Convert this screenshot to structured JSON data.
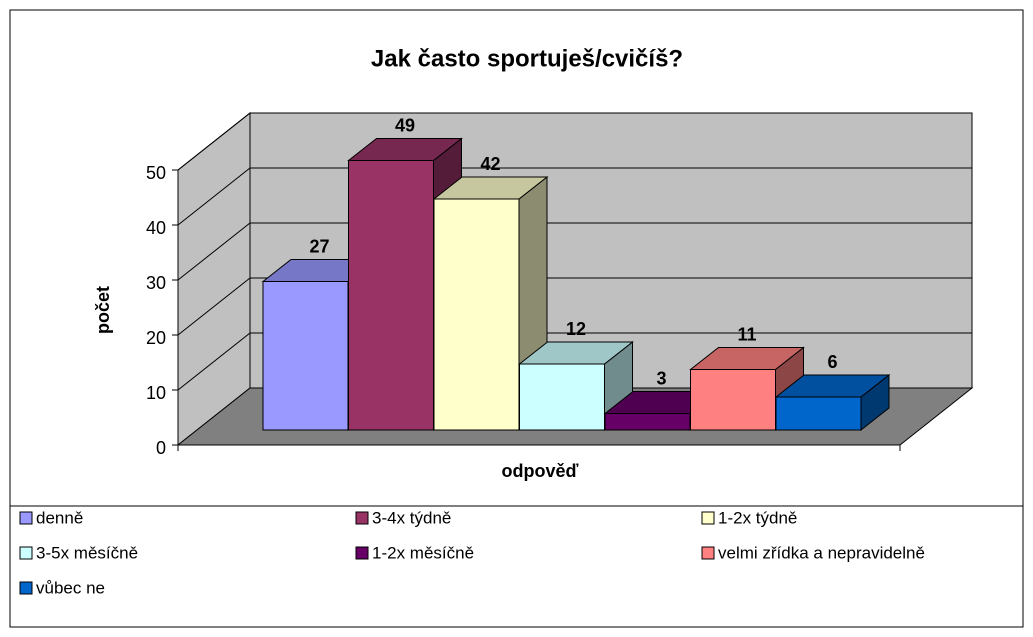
{
  "chart_data": {
    "type": "bar3d",
    "title": "Jak často sportuješ/cvičíš?",
    "ylabel": "počet",
    "xlabel": "odpověď",
    "categories": [
      "denně",
      "3-4x týdně",
      "1-2x týdně",
      "3-5x měsíčně",
      "1-2x měsíčně",
      "velmi zřídka a nepravidelně",
      "vůbec ne"
    ],
    "values": [
      27,
      49,
      42,
      12,
      3,
      11,
      6
    ],
    "colors": [
      "#9999ff",
      "#993366",
      "#ffffcc",
      "#ccffff",
      "#660066",
      "#ff8080",
      "#0066cc"
    ],
    "ylim": [
      0,
      50
    ],
    "yticks": [
      0,
      10,
      20,
      30,
      40,
      50
    ],
    "grid": true,
    "legend": "bottom"
  }
}
